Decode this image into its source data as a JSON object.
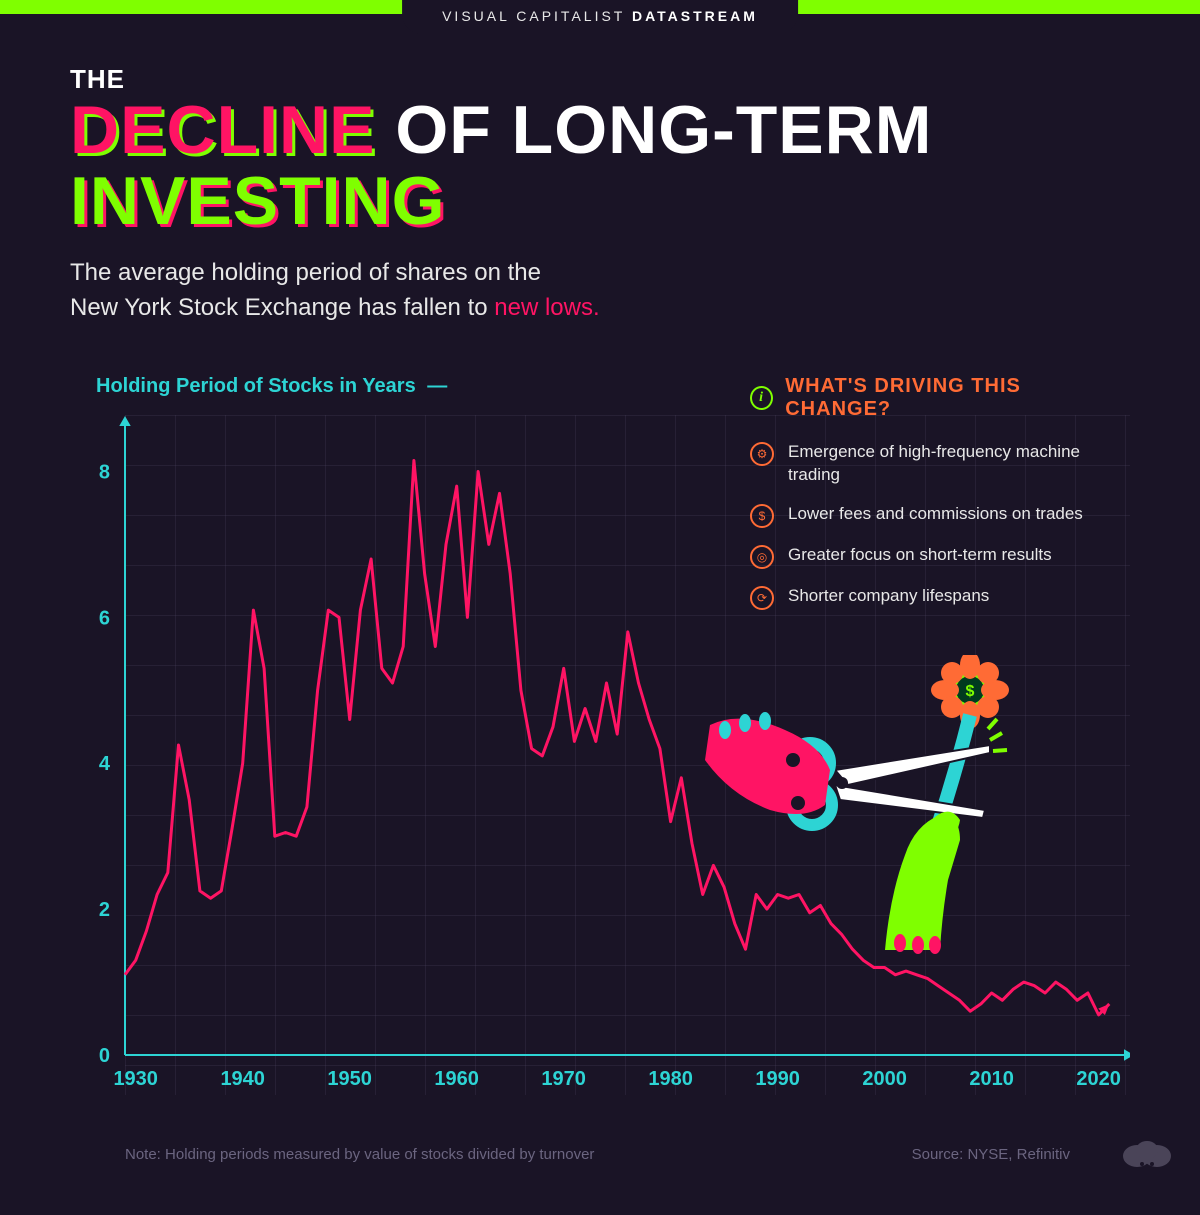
{
  "header": {
    "brand_light": "VISUAL CAPITALIST",
    "brand_bold": "DATASTREAM"
  },
  "title": {
    "the": "THE",
    "decline": "DECLINE",
    "mid": " OF LONG-TERM ",
    "investing": "INVESTING"
  },
  "subtitle": {
    "line1": "The average holding period of shares on the",
    "line2_a": "New York Stock Exchange has fallen to ",
    "line2_b": "new lows."
  },
  "chart": {
    "type": "line",
    "y_label": "Holding Period of Stocks in Years",
    "dash": "—",
    "x_ticks": [
      1930,
      1940,
      1950,
      1960,
      1970,
      1980,
      1990,
      2000,
      2010,
      2020
    ],
    "y_ticks": [
      0,
      2,
      4,
      6,
      8
    ],
    "xlim": [
      1929,
      2022
    ],
    "ylim": [
      0,
      8.5
    ],
    "line_color": "#ff1464",
    "axis_color": "#2dd4d4",
    "grid_color": "rgba(80,70,100,0.25)",
    "background_color": "#1a1426",
    "line_width": 3,
    "data": [
      [
        1929,
        1.1
      ],
      [
        1930,
        1.3
      ],
      [
        1931,
        1.7
      ],
      [
        1932,
        2.2
      ],
      [
        1933,
        2.5
      ],
      [
        1934,
        4.25
      ],
      [
        1935,
        3.5
      ],
      [
        1936,
        2.25
      ],
      [
        1937,
        2.15
      ],
      [
        1938,
        2.25
      ],
      [
        1939,
        3.1
      ],
      [
        1940,
        4.0
      ],
      [
        1941,
        6.1
      ],
      [
        1942,
        5.3
      ],
      [
        1943,
        3.0
      ],
      [
        1944,
        3.05
      ],
      [
        1945,
        3.0
      ],
      [
        1946,
        3.4
      ],
      [
        1947,
        5.0
      ],
      [
        1948,
        6.1
      ],
      [
        1949,
        6.0
      ],
      [
        1950,
        4.6
      ],
      [
        1951,
        6.1
      ],
      [
        1952,
        6.8
      ],
      [
        1953,
        5.3
      ],
      [
        1954,
        5.1
      ],
      [
        1955,
        5.6
      ],
      [
        1956,
        8.15
      ],
      [
        1957,
        6.6
      ],
      [
        1958,
        5.6
      ],
      [
        1959,
        7.0
      ],
      [
        1960,
        7.8
      ],
      [
        1961,
        6.0
      ],
      [
        1962,
        8.0
      ],
      [
        1963,
        7.0
      ],
      [
        1964,
        7.7
      ],
      [
        1965,
        6.6
      ],
      [
        1966,
        5.0
      ],
      [
        1967,
        4.2
      ],
      [
        1968,
        4.1
      ],
      [
        1969,
        4.5
      ],
      [
        1970,
        5.3
      ],
      [
        1971,
        4.3
      ],
      [
        1972,
        4.75
      ],
      [
        1973,
        4.3
      ],
      [
        1974,
        5.1
      ],
      [
        1975,
        4.4
      ],
      [
        1976,
        5.8
      ],
      [
        1977,
        5.1
      ],
      [
        1978,
        4.6
      ],
      [
        1979,
        4.2
      ],
      [
        1980,
        3.2
      ],
      [
        1981,
        3.8
      ],
      [
        1982,
        2.9
      ],
      [
        1983,
        2.2
      ],
      [
        1984,
        2.6
      ],
      [
        1985,
        2.3
      ],
      [
        1986,
        1.8
      ],
      [
        1987,
        1.45
      ],
      [
        1988,
        2.2
      ],
      [
        1989,
        2.0
      ],
      [
        1990,
        2.2
      ],
      [
        1991,
        2.15
      ],
      [
        1992,
        2.2
      ],
      [
        1993,
        1.95
      ],
      [
        1994,
        2.05
      ],
      [
        1995,
        1.8
      ],
      [
        1996,
        1.65
      ],
      [
        1997,
        1.45
      ],
      [
        1998,
        1.3
      ],
      [
        1999,
        1.2
      ],
      [
        2000,
        1.2
      ],
      [
        2001,
        1.1
      ],
      [
        2002,
        1.15
      ],
      [
        2003,
        1.1
      ],
      [
        2004,
        1.05
      ],
      [
        2005,
        0.95
      ],
      [
        2006,
        0.85
      ],
      [
        2007,
        0.75
      ],
      [
        2008,
        0.6
      ],
      [
        2009,
        0.7
      ],
      [
        2010,
        0.85
      ],
      [
        2011,
        0.75
      ],
      [
        2012,
        0.9
      ],
      [
        2013,
        1.0
      ],
      [
        2014,
        0.95
      ],
      [
        2015,
        0.85
      ],
      [
        2016,
        1.0
      ],
      [
        2017,
        0.9
      ],
      [
        2018,
        0.75
      ],
      [
        2019,
        0.85
      ],
      [
        2020,
        0.55
      ],
      [
        2021,
        0.7
      ]
    ]
  },
  "info": {
    "heading": "WHAT'S DRIVING THIS CHANGE?",
    "items": [
      {
        "icon": "gear",
        "text": "Emergence of high-frequency machine trading"
      },
      {
        "icon": "dollar",
        "text": "Lower fees and commissions on trades"
      },
      {
        "icon": "target",
        "text": "Greater focus on short-term results"
      },
      {
        "icon": "cycle",
        "text": "Shorter company lifespans"
      }
    ]
  },
  "footer": {
    "note": "Note: Holding periods measured by value of stocks divided by turnover",
    "source": "Source: NYSE, Refinitiv"
  },
  "colors": {
    "neon_green": "#7fff00",
    "pink": "#ff1464",
    "teal": "#2dd4d4",
    "orange": "#ff6b35",
    "bg": "#1a1426"
  }
}
